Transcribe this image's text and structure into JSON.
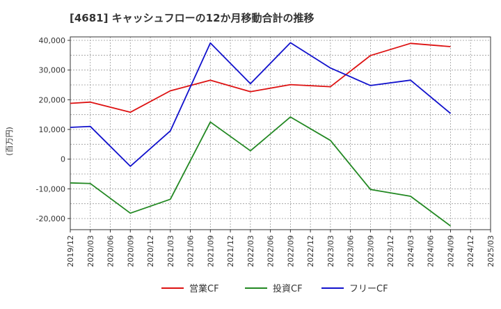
{
  "chart_data": {
    "type": "line",
    "title": "[4681]  キャッシュフローの12か月移動合計の推移",
    "ylabel": "(百万円)",
    "xlabel": "",
    "ylim": [
      -24000,
      41000
    ],
    "yticks": [
      40000,
      30000,
      20000,
      10000,
      0,
      -10000,
      -20000
    ],
    "ytick_labels": [
      "40,000",
      "30,000",
      "20,000",
      "10,000",
      "0",
      "-10,000",
      "-20,000"
    ],
    "categories": [
      "2019/12",
      "2020/03",
      "2020/06",
      "2020/09",
      "2020/12",
      "2021/03",
      "2021/06",
      "2021/09",
      "2021/12",
      "2022/03",
      "2022/06",
      "2022/09",
      "2022/12",
      "2023/03",
      "2023/06",
      "2023/09",
      "2023/12",
      "2024/03",
      "2024/06",
      "2024/09",
      "2024/12",
      "2025/03"
    ],
    "series": [
      {
        "name": "営業CF",
        "color": "#dd1111",
        "values": [
          18800,
          19200,
          null,
          15800,
          null,
          23000,
          null,
          26600,
          null,
          22700,
          null,
          25100,
          null,
          24400,
          null,
          34900,
          null,
          39000,
          null,
          37900,
          null,
          null
        ]
      },
      {
        "name": "投資CF",
        "color": "#228822",
        "values": [
          -8000,
          -8200,
          null,
          -18200,
          null,
          -13500,
          null,
          12500,
          null,
          2800,
          null,
          14200,
          null,
          6300,
          null,
          -10200,
          null,
          -12500,
          null,
          -22500,
          null,
          null
        ]
      },
      {
        "name": "フリーCF",
        "color": "#1111cc",
        "values": [
          10700,
          11000,
          null,
          -2400,
          null,
          9500,
          null,
          39100,
          null,
          25400,
          null,
          39200,
          null,
          30700,
          null,
          24800,
          null,
          26600,
          null,
          15400,
          null,
          null
        ]
      }
    ],
    "legend_position": "bottom",
    "grid": true
  }
}
